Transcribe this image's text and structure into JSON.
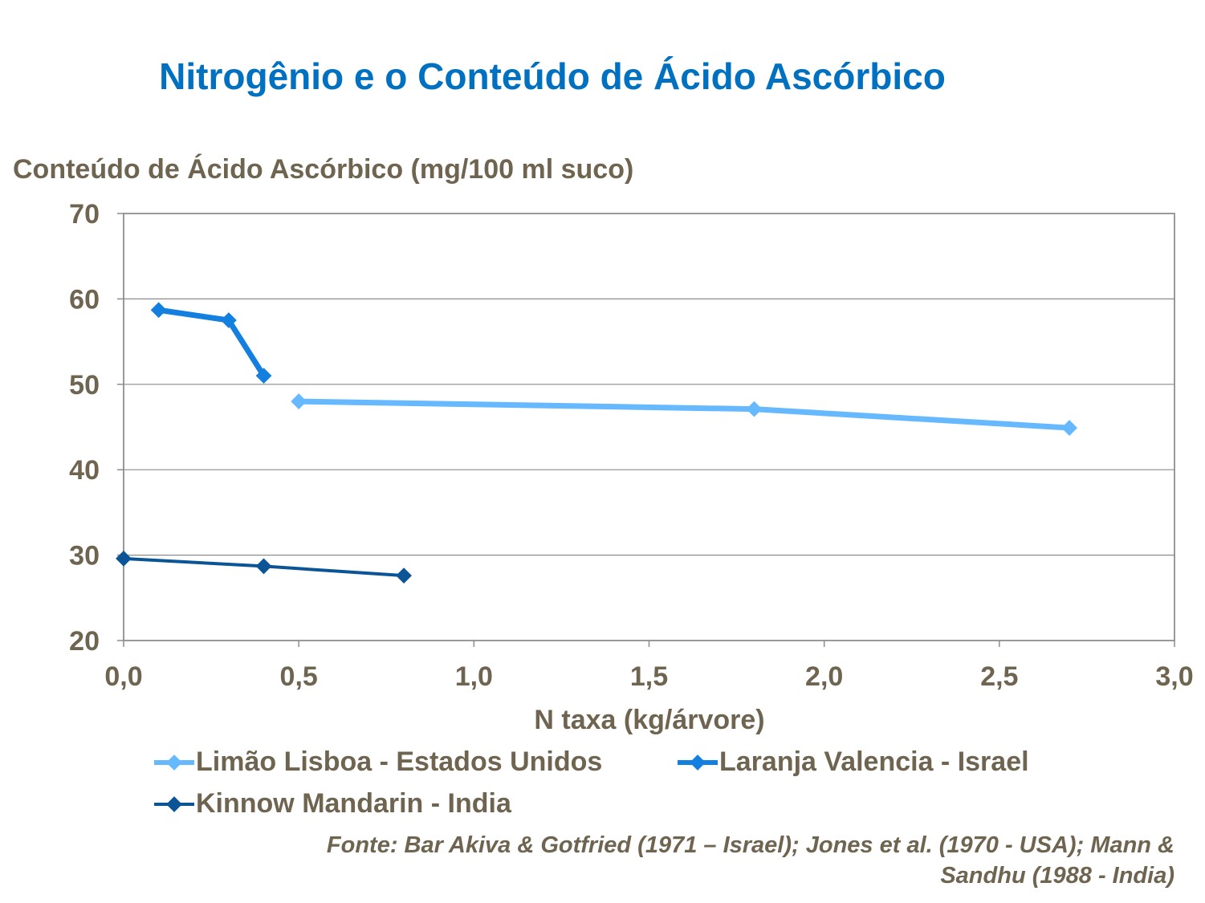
{
  "chart_data": {
    "type": "line",
    "title": "Nitrogênio e o Conteúdo de Ácido Ascórbico",
    "ylabel": "Conteúdo de Ácido Ascórbico (mg/100 ml suco)",
    "xlabel": "N taxa (kg/árvore)",
    "xlim": [
      0,
      3
    ],
    "ylim": [
      20,
      70
    ],
    "x_ticks": [
      "0,0",
      "0,5",
      "1,0",
      "1,5",
      "2,0",
      "2,5",
      "3,0"
    ],
    "y_ticks": [
      "20",
      "30",
      "40",
      "50",
      "60",
      "70"
    ],
    "grid": "horizontal",
    "legend_position": "bottom",
    "series": [
      {
        "name": "Limão Lisboa - Estados Unidos",
        "color": "#66b8ff",
        "points": [
          [
            0.5,
            48.0
          ],
          [
            1.8,
            47.1
          ],
          [
            2.7,
            44.9
          ]
        ]
      },
      {
        "name": "Laranja Valencia - Israel",
        "color": "#1380e0",
        "points": [
          [
            0.1,
            58.7
          ],
          [
            0.3,
            57.5
          ],
          [
            0.4,
            51.0
          ]
        ]
      },
      {
        "name": "Kinnow Mandarin - India",
        "color": "#0b5596",
        "points": [
          [
            0.0,
            29.6
          ],
          [
            0.4,
            28.7
          ],
          [
            0.8,
            27.6
          ]
        ]
      }
    ]
  },
  "source_lines": [
    "Fonte: Bar Akiva & Gotfried (1971 – Israel); Jones et al. (1970 - USA); Mann &",
    "Sandhu (1988 - India)"
  ]
}
